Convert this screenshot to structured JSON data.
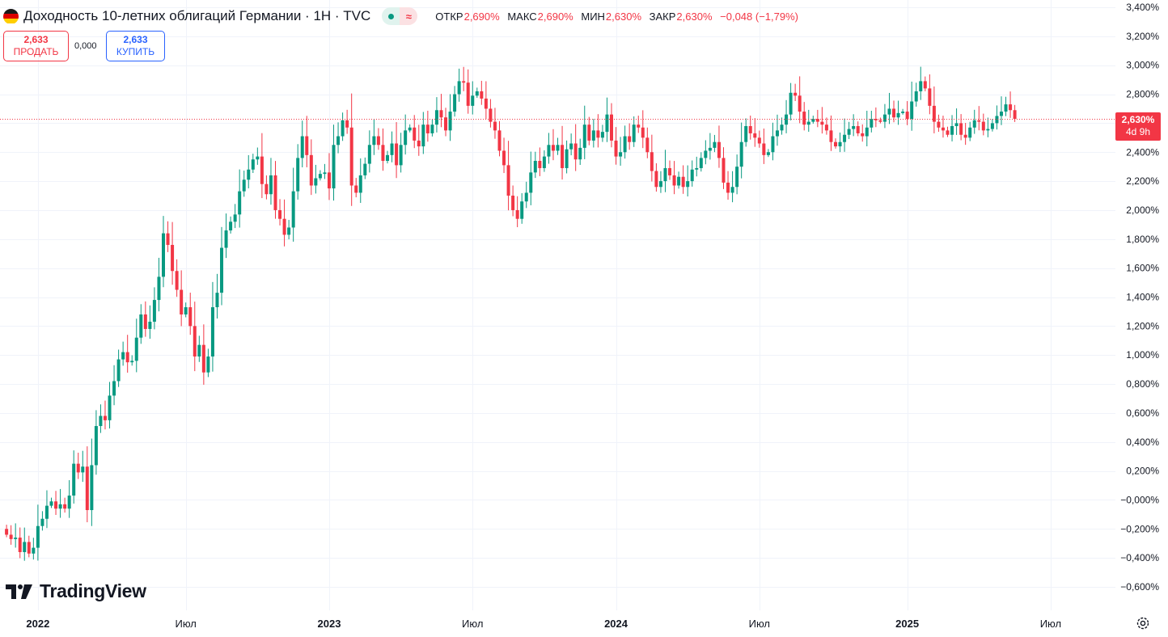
{
  "header": {
    "title": "Доходность 10-летних облигаций Германии · 1Н · TVC",
    "ohlc": {
      "open_label": "ОТКР",
      "open": "2,690%",
      "high_label": "МАКС",
      "high": "2,690%",
      "low_label": "МИН",
      "low": "2,630%",
      "close_label": "ЗАКР",
      "close": "2,630%",
      "change": "−0,048 (−1,79%)"
    }
  },
  "trade": {
    "sell_price": "2,633",
    "sell_label": "ПРОДАТЬ",
    "spread": "0,000",
    "buy_price": "2,633",
    "buy_label": "КУПИТЬ"
  },
  "brand": {
    "name": "TradingView"
  },
  "last_price": {
    "value": "2,630%",
    "countdown": "4d 9h"
  },
  "icons": [
    "germany-flag-icon",
    "market-open-dot-icon",
    "delayed-data-icon",
    "tradingview-logo-icon",
    "settings-icon"
  ],
  "colors": {
    "up": "#089981",
    "down": "#f23645",
    "buy": "#2962ff",
    "grid": "#f0f3fa"
  },
  "chart_data": {
    "type": "candlestick",
    "title": "Доходность 10-летних облигаций Германии",
    "interval": "1Н",
    "unit": "%",
    "ylim": [
      -0.68,
      3.4
    ],
    "y_ticks": [
      3.4,
      3.2,
      3.0,
      2.8,
      2.6,
      2.4,
      2.2,
      2.0,
      1.8,
      1.6,
      1.4,
      1.2,
      1.0,
      0.8,
      0.6,
      0.4,
      0.2,
      -0.0,
      -0.2,
      -0.4,
      -0.6
    ],
    "y_tick_labels": [
      "3,400%",
      "3,200%",
      "3,000%",
      "2,800%",
      "2,600%",
      "2,400%",
      "2,200%",
      "2,000%",
      "1,800%",
      "1,600%",
      "1,400%",
      "1,200%",
      "1,000%",
      "0,800%",
      "0,600%",
      "0,400%",
      "0,200%",
      "−0,000%",
      "−0,200%",
      "−0,400%",
      "−0,600%"
    ],
    "x_ticks": [
      {
        "label": "2022",
        "index": 7,
        "bold": true
      },
      {
        "label": "Июл",
        "index": 40,
        "bold": false
      },
      {
        "label": "2023",
        "index": 72,
        "bold": true
      },
      {
        "label": "Июл",
        "index": 104,
        "bold": false
      },
      {
        "label": "2024",
        "index": 136,
        "bold": true
      },
      {
        "label": "Июл",
        "index": 168,
        "bold": false
      },
      {
        "label": "2025",
        "index": 201,
        "bold": true
      },
      {
        "label": "Июл",
        "index": 233,
        "bold": false
      }
    ],
    "grid": true,
    "last_close": 2.63,
    "closes": [
      -0.24,
      -0.27,
      -0.26,
      -0.36,
      -0.29,
      -0.37,
      -0.33,
      -0.18,
      -0.13,
      -0.04,
      -0.01,
      -0.06,
      -0.03,
      -0.06,
      0.03,
      0.25,
      0.19,
      0.23,
      -0.07,
      0.24,
      0.51,
      0.58,
      0.55,
      0.72,
      0.82,
      0.97,
      1.02,
      0.95,
      0.96,
      1.12,
      1.28,
      1.18,
      1.23,
      1.38,
      1.54,
      1.84,
      1.76,
      1.58,
      1.45,
      1.28,
      1.33,
      1.2,
      0.99,
      1.07,
      0.88,
      0.99,
      1.33,
      1.43,
      1.74,
      1.86,
      1.92,
      1.97,
      2.13,
      2.21,
      2.28,
      2.35,
      2.37,
      2.18,
      2.11,
      2.24,
      2.0,
      1.94,
      1.83,
      1.88,
      2.13,
      2.36,
      2.51,
      2.38,
      2.17,
      2.22,
      2.25,
      2.26,
      2.15,
      2.45,
      2.51,
      2.62,
      2.57,
      2.17,
      2.12,
      2.24,
      2.32,
      2.45,
      2.51,
      2.45,
      2.34,
      2.38,
      2.46,
      2.31,
      2.45,
      2.55,
      2.57,
      2.48,
      2.44,
      2.59,
      2.53,
      2.59,
      2.69,
      2.64,
      2.55,
      2.68,
      2.8,
      2.89,
      2.88,
      2.72,
      2.79,
      2.82,
      2.77,
      2.7,
      2.61,
      2.55,
      2.41,
      2.31,
      2.1,
      2.0,
      1.94,
      2.06,
      2.12,
      2.26,
      2.34,
      2.29,
      2.37,
      2.45,
      2.41,
      2.45,
      2.29,
      2.42,
      2.46,
      2.35,
      2.43,
      2.59,
      2.48,
      2.55,
      2.5,
      2.54,
      2.66,
      2.48,
      2.37,
      2.4,
      2.51,
      2.47,
      2.59,
      2.57,
      2.5,
      2.4,
      2.27,
      2.16,
      2.2,
      2.29,
      2.24,
      2.17,
      2.23,
      2.16,
      2.2,
      2.28,
      2.29,
      2.36,
      2.41,
      2.43,
      2.47,
      2.36,
      2.19,
      2.12,
      2.16,
      2.3,
      2.47,
      2.58,
      2.53,
      2.5,
      2.46,
      2.38,
      2.4,
      2.51,
      2.55,
      2.59,
      2.66,
      2.81,
      2.79,
      2.68,
      2.59,
      2.61,
      2.63,
      2.61,
      2.59,
      2.55,
      2.47,
      2.44,
      2.47,
      2.52,
      2.56,
      2.58,
      2.53,
      2.51,
      2.57,
      2.63,
      2.62,
      2.61,
      2.66,
      2.7,
      2.64,
      2.67,
      2.68,
      2.63,
      2.75,
      2.82,
      2.89,
      2.84,
      2.72,
      2.61,
      2.57,
      2.55,
      2.52,
      2.58,
      2.6,
      2.52,
      2.5,
      2.57,
      2.62,
      2.61,
      2.55,
      2.56,
      2.6,
      2.65,
      2.68,
      2.73,
      2.69,
      2.63
    ]
  }
}
